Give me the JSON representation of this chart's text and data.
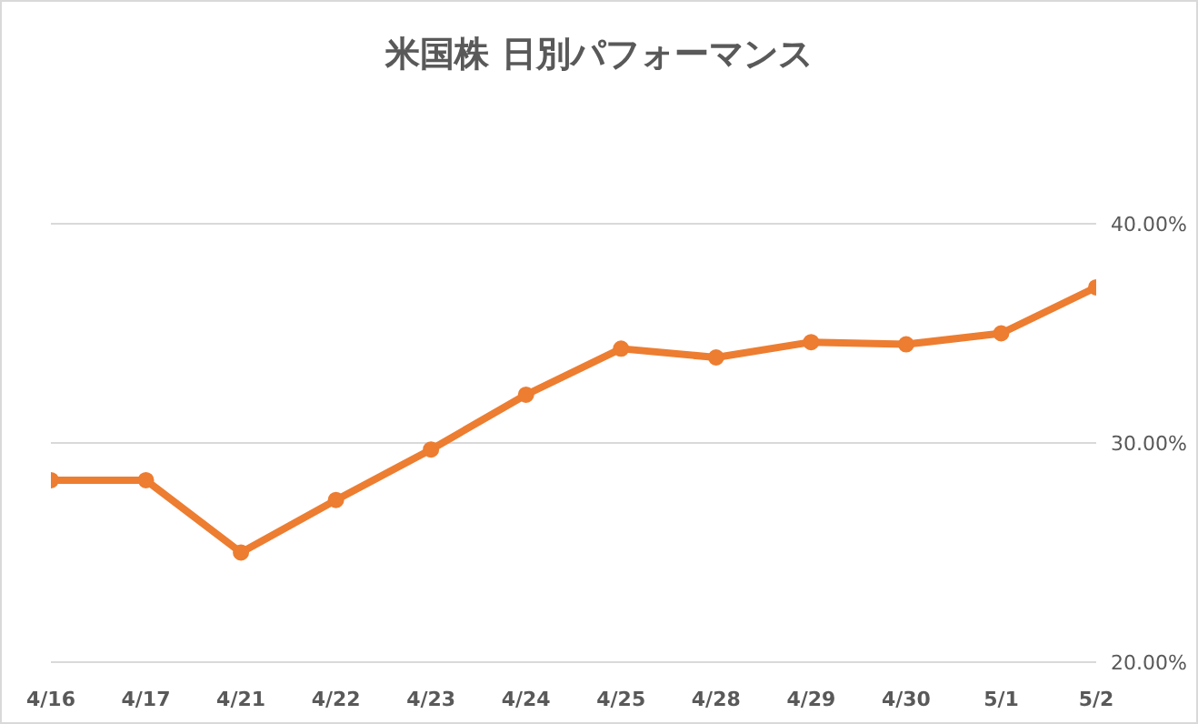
{
  "chart_data": {
    "type": "line",
    "title": "米国株 日別パフォーマンス",
    "categories": [
      "4/16",
      "4/17",
      "4/21",
      "4/22",
      "4/23",
      "4/24",
      "4/25",
      "4/28",
      "4/29",
      "4/30",
      "5/1",
      "5/2"
    ],
    "series": [
      {
        "color": "#ed7d31",
        "values": [
          28.3,
          28.3,
          25.0,
          27.4,
          29.7,
          32.2,
          34.3,
          33.9,
          34.6,
          34.5,
          35.0,
          37.1
        ]
      }
    ],
    "ylim": [
      20,
      40
    ],
    "yticks": [
      {
        "value": 20,
        "label": "20.00%"
      },
      {
        "value": 30,
        "label": "30.00%"
      },
      {
        "value": 40,
        "label": "40.00%"
      }
    ],
    "grid": "y",
    "marker": "circle",
    "line_style": "solid"
  }
}
